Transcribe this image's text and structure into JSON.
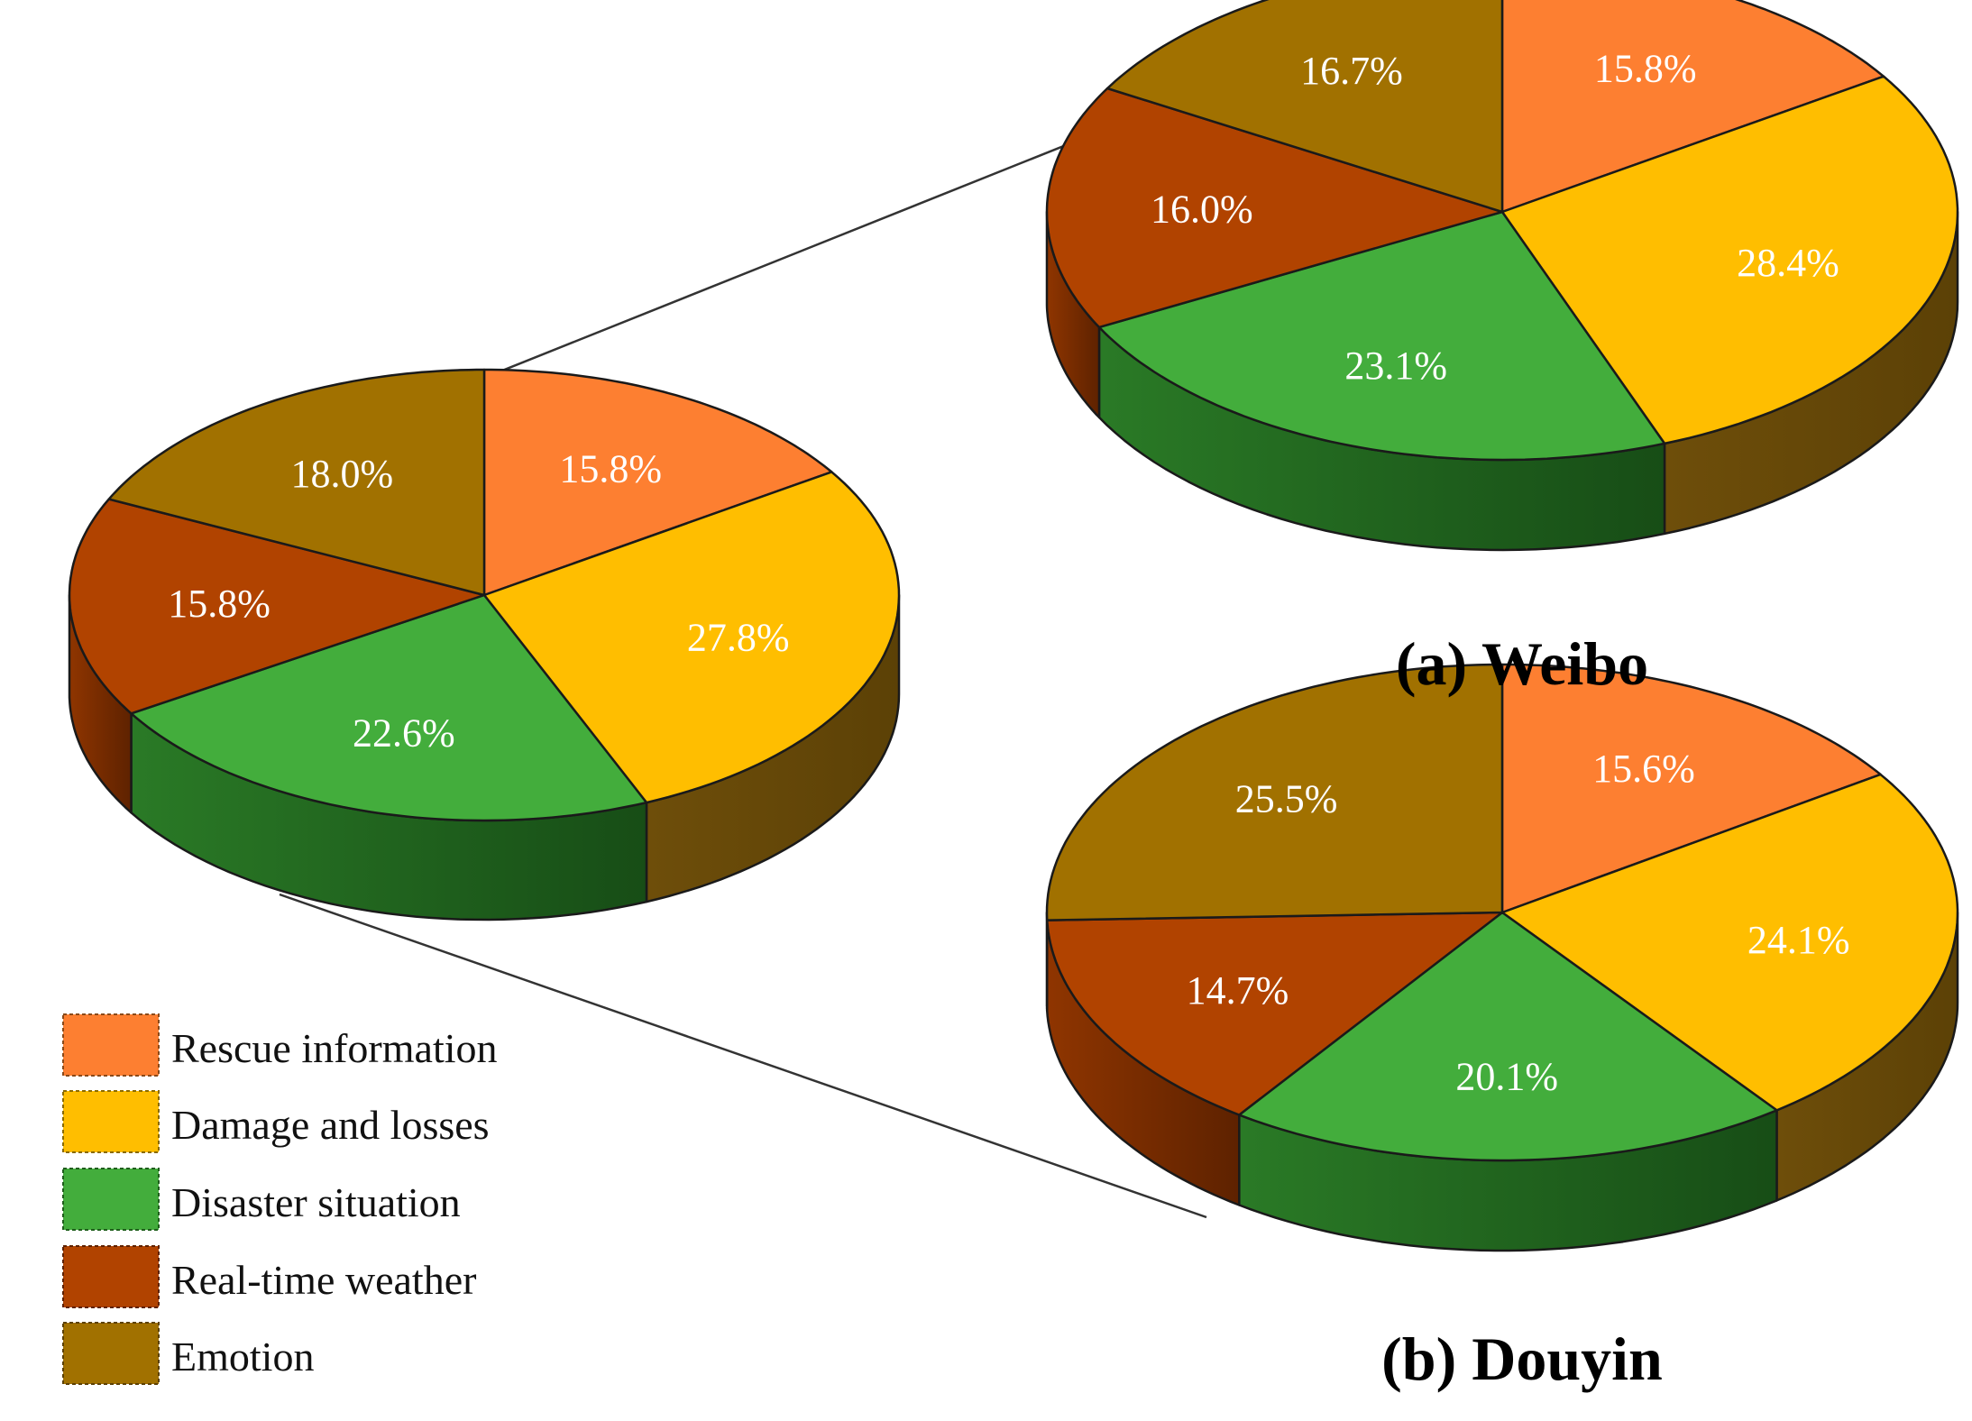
{
  "chart_data": [
    {
      "type": "pie",
      "id": "overall",
      "title": "",
      "categories": [
        "Rescue information",
        "Damage and losses",
        "Disaster situation",
        "Real-time weather",
        "Emotion"
      ],
      "values": [
        15.8,
        27.8,
        22.6,
        15.8,
        18.0
      ],
      "labels": [
        "15.8%",
        "27.8%",
        "22.6%",
        "15.8%",
        "18.0%"
      ]
    },
    {
      "type": "pie",
      "id": "weibo",
      "title": "(a) Weibo",
      "categories": [
        "Rescue information",
        "Damage and losses",
        "Disaster situation",
        "Real-time weather",
        "Emotion"
      ],
      "values": [
        15.8,
        28.4,
        23.1,
        16.0,
        16.7
      ],
      "labels": [
        "15.8%",
        "28.4%",
        "23.1%",
        "16.0%",
        "16.7%"
      ]
    },
    {
      "type": "pie",
      "id": "douyin",
      "title": "(b) Douyin",
      "categories": [
        "Rescue information",
        "Damage and losses",
        "Disaster situation",
        "Real-time weather",
        "Emotion"
      ],
      "values": [
        15.6,
        24.1,
        20.1,
        14.7,
        25.5
      ],
      "labels": [
        "15.6%",
        "24.1%",
        "20.1%",
        "14.7%",
        "25.5%"
      ]
    }
  ],
  "legend": {
    "placement": "bottom-left",
    "items": [
      {
        "label": "Rescue information",
        "color": "#fd7f31"
      },
      {
        "label": "Damage and losses",
        "color": "#ffbe00"
      },
      {
        "label": "Disaster situation",
        "color": "#43ad3c"
      },
      {
        "label": "Real-time weather",
        "color": "#b14300"
      },
      {
        "label": "Emotion",
        "color": "#a17100"
      }
    ]
  },
  "colors": {
    "top": [
      "#fd7f31",
      "#ffbe00",
      "#43ad3c",
      "#b14300",
      "#a17100"
    ],
    "side": [
      "#b85a1e",
      "#6e4e0a",
      "#2a7a26",
      "#8f3500",
      "#6e4e0a"
    ],
    "side_dark": [
      "#7a3a10",
      "#5c4106",
      "#174d16",
      "#5e2200",
      "#5c4106"
    ]
  }
}
